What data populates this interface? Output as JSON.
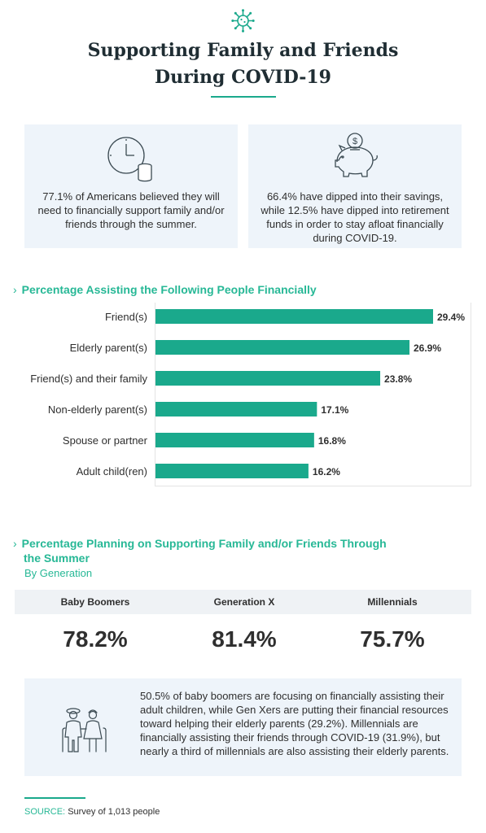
{
  "header": {
    "title_line1": "Supporting Family and Friends",
    "title_line2": "During COVID-19",
    "icon": "virus-icon"
  },
  "cards": [
    {
      "icon": "clock-coins-icon",
      "text": "77.1% of Americans believed they will need to financially support family and/or friends through the summer."
    },
    {
      "icon": "piggy-bank-icon",
      "text": "66.4% have dipped into their savings, while 12.5% have dipped into retirement funds in order to stay afloat financially during COVID-19."
    }
  ],
  "section1": {
    "title": "Percentage Assisting the Following People Financially"
  },
  "chart_data": {
    "type": "bar",
    "orientation": "horizontal",
    "title": "Percentage Assisting the Following People Financially",
    "categories": [
      "Friend(s)",
      "Elderly parent(s)",
      "Friend(s) and their family",
      "Non-elderly parent(s)",
      "Spouse or partner",
      "Adult child(ren)"
    ],
    "values": [
      29.4,
      26.9,
      23.8,
      17.1,
      16.8,
      16.2
    ],
    "value_labels": [
      "29.4%",
      "26.9%",
      "23.8%",
      "17.1%",
      "16.8%",
      "16.2%"
    ],
    "xlim": [
      0,
      29.4
    ],
    "bar_color": "#1aa98c",
    "grid": false,
    "legend": "none"
  },
  "section2": {
    "title_line1": "Percentage Planning on Supporting Family and/or Friends Through",
    "title_line2": "the Summer",
    "subtitle": "By Generation"
  },
  "generations": [
    {
      "label": "Baby Boomers",
      "value": "78.2%"
    },
    {
      "label": "Generation X",
      "value": "81.4%"
    },
    {
      "label": "Millennials",
      "value": "75.7%"
    }
  ],
  "note": {
    "icon": "elderly-couple-icon",
    "text": "50.5% of baby boomers are focusing on financially assisting their adult children, while Gen Xers are putting their financial resources toward helping their elderly parents (29.2%). Millennials are financially assisting their friends through COVID-19 (31.9%), but nearly a third of millennials are also assisting their elderly parents."
  },
  "source": {
    "label": "SOURCE:",
    "text": "Survey of 1,013 people"
  },
  "colors": {
    "accent": "#1aa98c",
    "accent_text": "#27b896",
    "card_bg": "#eef4fa",
    "title": "#1f2d33"
  }
}
